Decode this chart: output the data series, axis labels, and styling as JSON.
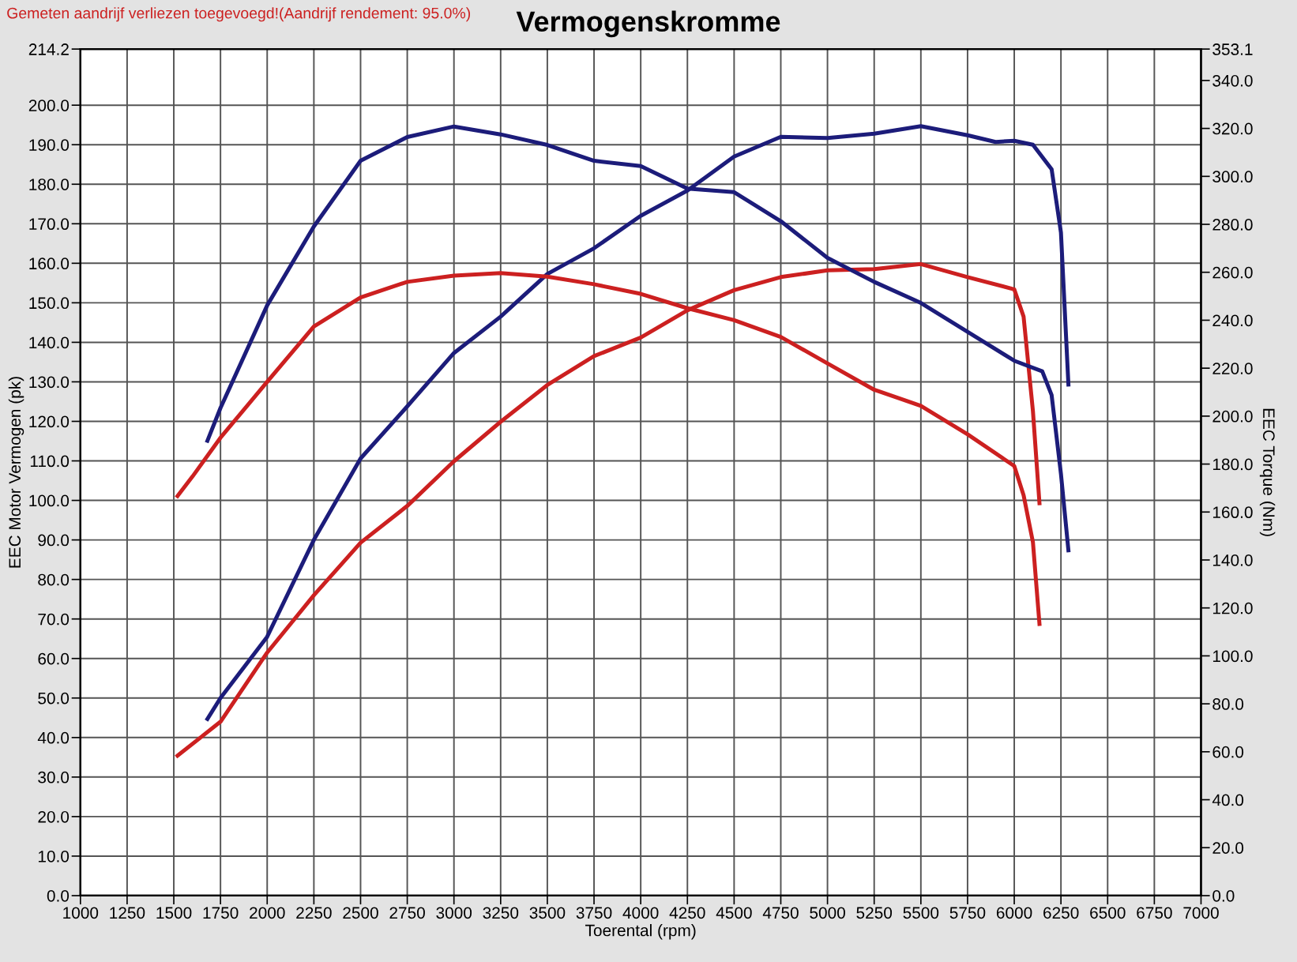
{
  "chart_data": {
    "type": "line",
    "title": "Vermogenskromme",
    "xlabel": "Toerental (rpm)",
    "ylabel": "EEC Motor Vermogen (pk)",
    "y2label": "EEC Torque (Nm)",
    "annotations": [
      "Gemeten aandrijf verliezen toegevoegd!(Aandrijf rendement: 95.0%)"
    ],
    "xlim": [
      1000,
      7000
    ],
    "xticks": [
      1000,
      1250,
      1500,
      1750,
      2000,
      2250,
      2500,
      2750,
      3000,
      3250,
      3500,
      3750,
      4000,
      4250,
      4500,
      4750,
      5000,
      5250,
      5500,
      5750,
      6000,
      6250,
      6500,
      6750,
      7000
    ],
    "ylim": [
      0,
      214.2
    ],
    "yticks": [
      {
        "value": 0,
        "label": "0.0"
      },
      {
        "value": 10,
        "label": "10.0"
      },
      {
        "value": 20,
        "label": "20.0"
      },
      {
        "value": 30,
        "label": "30.0"
      },
      {
        "value": 40,
        "label": "40.0"
      },
      {
        "value": 50,
        "label": "50.0"
      },
      {
        "value": 60,
        "label": "60.0"
      },
      {
        "value": 70,
        "label": "70.0"
      },
      {
        "value": 80,
        "label": "80.0"
      },
      {
        "value": 90,
        "label": "90.0"
      },
      {
        "value": 100,
        "label": "100.0"
      },
      {
        "value": 110,
        "label": "110.0"
      },
      {
        "value": 120,
        "label": "120.0"
      },
      {
        "value": 130,
        "label": "130.0"
      },
      {
        "value": 140,
        "label": "140.0"
      },
      {
        "value": 150,
        "label": "150.0"
      },
      {
        "value": 160,
        "label": "160.0"
      },
      {
        "value": 170,
        "label": "170.0"
      },
      {
        "value": 180,
        "label": "180.0"
      },
      {
        "value": 190,
        "label": "190.0"
      },
      {
        "value": 200,
        "label": "200.0"
      },
      214.2
    ],
    "y2lim": [
      0,
      353.1
    ],
    "y2ticks": [
      {
        "value": 0,
        "label": "0.0"
      },
      {
        "value": 20,
        "label": "20.0"
      },
      {
        "value": 40,
        "label": "40.0"
      },
      {
        "value": 60,
        "label": "60.0"
      },
      {
        "value": 80,
        "label": "80.0"
      },
      {
        "value": 100,
        "label": "100.0"
      },
      {
        "value": 120,
        "label": "120.0"
      },
      {
        "value": 140,
        "label": "140.0"
      },
      {
        "value": 160,
        "label": "160.0"
      },
      {
        "value": 180,
        "label": "180.0"
      },
      {
        "value": 200,
        "label": "200.0"
      },
      {
        "value": 220,
        "label": "220.0"
      },
      {
        "value": 240,
        "label": "240.0"
      },
      {
        "value": 260,
        "label": "260.0"
      },
      {
        "value": 280,
        "label": "280.0"
      },
      {
        "value": 300,
        "label": "300.0"
      },
      {
        "value": 320,
        "label": "320.0"
      },
      {
        "value": 340,
        "label": "340.0"
      },
      353.1
    ],
    "grid": true,
    "marker": "none",
    "line_style": "solid",
    "series": [
      {
        "color": "#1c1c7a",
        "x": [
          1680,
          1750,
          2000,
          2250,
          2500,
          2750,
          3000,
          3250,
          3500,
          3750,
          4000,
          4250,
          4500,
          4750,
          5000,
          5250,
          5500,
          5750,
          5900,
          6000,
          6100,
          6200,
          6250,
          6290
        ],
        "values": [
          44.7,
          50,
          65.5,
          90,
          110.6,
          123.8,
          137.3,
          146.5,
          157.3,
          163.8,
          172,
          178.4,
          187,
          192,
          191.7,
          192.8,
          194.7,
          192.4,
          190.7,
          191,
          190,
          183.8,
          167.8,
          129.3
        ]
      },
      {
        "color": "#1c1c7a",
        "axis": "y2",
        "x": [
          1680,
          1750,
          2000,
          2250,
          2500,
          2750,
          3000,
          3250,
          3500,
          3750,
          4000,
          4250,
          4500,
          4750,
          5000,
          5250,
          5500,
          5750,
          6000,
          6150,
          6200,
          6250,
          6290
        ],
        "values": [
          189.7,
          203.4,
          246.2,
          279.1,
          306.5,
          316.4,
          320.8,
          317.5,
          313.1,
          306.5,
          304.3,
          294.9,
          293.4,
          281.3,
          266,
          256,
          247.2,
          235.2,
          223.1,
          218.7,
          208.8,
          175.9,
          144
        ]
      },
      {
        "color": "#cc2020",
        "x": [
          1520,
          1750,
          2000,
          2250,
          2500,
          2750,
          3000,
          3250,
          3500,
          3750,
          4000,
          4250,
          4500,
          4750,
          5000,
          5250,
          5500,
          5750,
          6000,
          6050,
          6100,
          6135
        ],
        "values": [
          35.4,
          44,
          61.5,
          76,
          89.3,
          98.6,
          109.9,
          119.9,
          129.2,
          136.5,
          141.2,
          148.1,
          153.2,
          156.5,
          158.2,
          158.5,
          159.8,
          156.5,
          153.4,
          146.5,
          122.6,
          99.3
        ]
      },
      {
        "color": "#cc2020",
        "axis": "y2",
        "x": [
          1520,
          1600,
          1750,
          2000,
          2250,
          2500,
          2750,
          3000,
          3250,
          3500,
          3750,
          4000,
          4250,
          4500,
          4750,
          5000,
          5250,
          5500,
          5750,
          6000,
          6050,
          6100,
          6135
        ],
        "values": [
          166.7,
          174.8,
          191,
          214.3,
          237.4,
          249.5,
          256,
          258.6,
          259.7,
          258.2,
          255,
          251,
          245,
          240,
          233,
          222,
          211,
          204.3,
          192.4,
          179.2,
          167,
          147.4,
          113.3
        ]
      }
    ]
  }
}
